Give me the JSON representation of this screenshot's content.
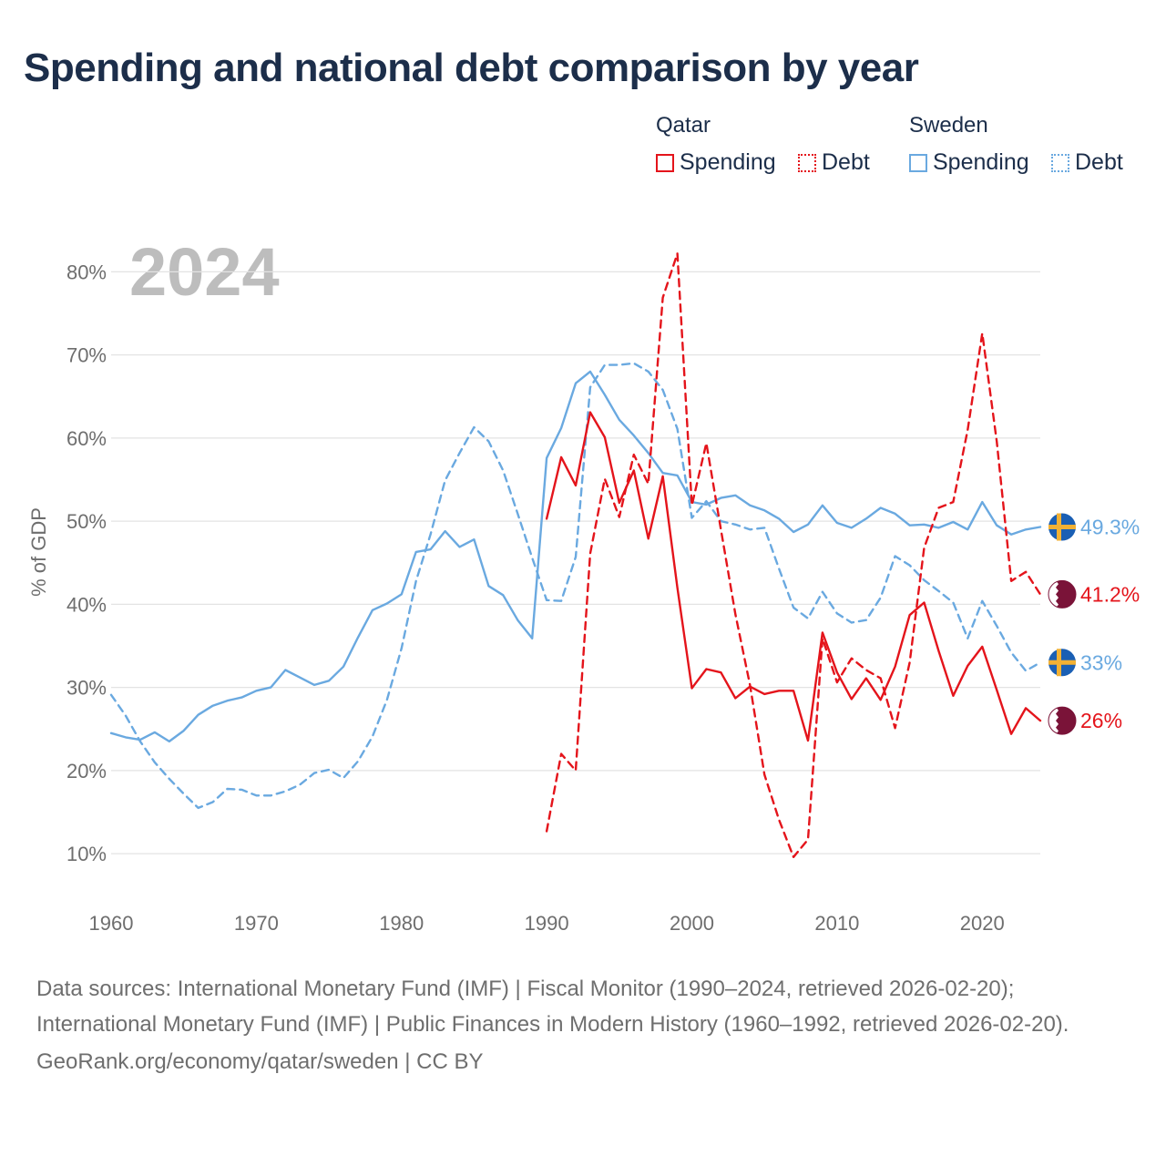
{
  "title": "Spending and national debt comparison by year",
  "legend": {
    "groups": [
      {
        "name": "Qatar",
        "items": [
          {
            "label": "Spending",
            "style": "solid",
            "color": "#e4141b"
          },
          {
            "label": "Debt",
            "style": "dotted",
            "color": "#e4141b"
          }
        ]
      },
      {
        "name": "Sweden",
        "items": [
          {
            "label": "Spending",
            "style": "solid",
            "color": "#6aa9e0"
          },
          {
            "label": "Debt",
            "style": "dotted",
            "color": "#6aa9e0"
          }
        ]
      }
    ]
  },
  "year_watermark": "2024",
  "footer": {
    "sources": "Data sources: International Monetary Fund (IMF) | Fiscal Monitor (1990–2024, retrieved 2026-02-20); International Monetary Fund (IMF) | Public Finances in Modern History (1960–1992, retrieved 2026-02-20).",
    "credit": "GeoRank.org/economy/qatar/sweden | CC BY"
  },
  "colors": {
    "qatar": "#e4141b",
    "sweden": "#6aa9e0",
    "qatar_flag": "#7a1338",
    "sweden_flag": "#1a5fb4",
    "sweden_cross": "#f2b134",
    "grid": "#e3e3e3"
  },
  "chart_data": {
    "type": "line",
    "title": "Spending and national debt comparison by year",
    "xlabel": "",
    "ylabel": "% of GDP",
    "xlim": [
      1960,
      2024
    ],
    "ylim": [
      3,
      83
    ],
    "x_ticks": [
      1960,
      1970,
      1980,
      1990,
      2000,
      2010,
      2020
    ],
    "y_ticks": [
      10,
      20,
      30,
      40,
      50,
      60,
      70,
      80
    ],
    "y_tick_labels": [
      "10%",
      "20%",
      "30%",
      "40%",
      "50%",
      "60%",
      "70%",
      "80%"
    ],
    "series": [
      {
        "name": "Sweden Spending",
        "country": "Sweden",
        "metric": "Spending",
        "dash": "solid",
        "end_label": "49.3%",
        "x": [
          1960,
          1961,
          1962,
          1963,
          1964,
          1965,
          1966,
          1967,
          1968,
          1969,
          1970,
          1971,
          1972,
          1973,
          1974,
          1975,
          1976,
          1977,
          1978,
          1979,
          1980,
          1981,
          1982,
          1983,
          1984,
          1985,
          1986,
          1987,
          1988,
          1989,
          1990,
          1991,
          1992,
          1993,
          1994,
          1995,
          1996,
          1997,
          1998,
          1999,
          2000,
          2001,
          2002,
          2003,
          2004,
          2005,
          2006,
          2007,
          2008,
          2009,
          2010,
          2011,
          2012,
          2013,
          2014,
          2015,
          2016,
          2017,
          2018,
          2019,
          2020,
          2021,
          2022,
          2023,
          2024
        ],
        "y": [
          24.5,
          24.0,
          23.7,
          24.6,
          23.5,
          24.8,
          26.7,
          27.8,
          28.4,
          28.8,
          29.6,
          30.0,
          32.1,
          31.2,
          30.3,
          30.8,
          32.5,
          36.0,
          39.3,
          40.1,
          41.2,
          46.3,
          46.6,
          48.8,
          46.9,
          47.8,
          42.2,
          41.1,
          38.1,
          35.9,
          57.6,
          61.2,
          66.6,
          68.0,
          65.2,
          62.2,
          60.3,
          58.2,
          55.8,
          55.5,
          52.3,
          52.0,
          52.8,
          53.1,
          51.9,
          51.3,
          50.3,
          48.7,
          49.6,
          51.9,
          49.8,
          49.2,
          50.3,
          51.6,
          50.9,
          49.5,
          49.6,
          49.2,
          49.9,
          49.0,
          52.3,
          49.5,
          48.4,
          49.0,
          49.3
        ]
      },
      {
        "name": "Sweden Debt",
        "country": "Sweden",
        "metric": "Debt",
        "dash": "dashed",
        "end_label": "33%",
        "x": [
          1960,
          1961,
          1962,
          1963,
          1964,
          1965,
          1966,
          1967,
          1968,
          1969,
          1970,
          1971,
          1972,
          1973,
          1974,
          1975,
          1976,
          1977,
          1978,
          1979,
          1980,
          1981,
          1982,
          1983,
          1984,
          1985,
          1986,
          1987,
          1988,
          1989,
          1990,
          1991,
          1992,
          1993,
          1994,
          1995,
          1996,
          1997,
          1998,
          1999,
          2000,
          2001,
          2002,
          2003,
          2004,
          2005,
          2006,
          2007,
          2008,
          2009,
          2010,
          2011,
          2012,
          2013,
          2014,
          2015,
          2016,
          2017,
          2018,
          2019,
          2020,
          2021,
          2022,
          2023,
          2024
        ],
        "y": [
          29.1,
          26.6,
          23.5,
          21.0,
          19.0,
          17.2,
          15.5,
          16.2,
          17.8,
          17.7,
          17.0,
          17.0,
          17.5,
          18.3,
          19.7,
          20.1,
          19.1,
          21.1,
          24.1,
          28.5,
          34.7,
          42.8,
          48.4,
          54.9,
          58.2,
          61.3,
          59.6,
          56.1,
          50.9,
          45.6,
          40.5,
          40.4,
          45.7,
          66.1,
          68.8,
          68.8,
          69.0,
          68.0,
          65.8,
          61.1,
          50.4,
          52.4,
          50.0,
          49.6,
          49.0,
          49.2,
          44.3,
          39.6,
          38.3,
          41.5,
          38.9,
          37.8,
          38.1,
          40.8,
          45.8,
          44.7,
          42.9,
          41.6,
          40.2,
          35.9,
          40.4,
          37.4,
          34.2,
          32.0,
          33.0
        ]
      },
      {
        "name": "Qatar Spending",
        "country": "Qatar",
        "metric": "Spending",
        "dash": "solid",
        "end_label": "26%",
        "x": [
          1990,
          1991,
          1992,
          1993,
          1994,
          1995,
          1996,
          1997,
          1998,
          1999,
          2000,
          2001,
          2002,
          2003,
          2004,
          2005,
          2006,
          2007,
          2008,
          2009,
          2010,
          2011,
          2012,
          2013,
          2014,
          2015,
          2016,
          2017,
          2018,
          2019,
          2020,
          2021,
          2022,
          2023,
          2024
        ],
        "y": [
          50.3,
          57.7,
          54.3,
          63.1,
          60.1,
          52.2,
          56.1,
          47.9,
          55.4,
          42.0,
          29.9,
          32.2,
          31.8,
          28.7,
          30.1,
          29.2,
          29.6,
          29.6,
          23.6,
          36.6,
          31.8,
          28.6,
          31.1,
          28.5,
          32.5,
          38.7,
          40.2,
          34.4,
          29.0,
          32.6,
          34.9,
          29.7,
          24.4,
          27.5,
          26.0
        ]
      },
      {
        "name": "Qatar Debt",
        "country": "Qatar",
        "metric": "Debt",
        "dash": "dashed",
        "end_label": "41.2%",
        "x": [
          1990,
          1991,
          1992,
          1993,
          1994,
          1995,
          1996,
          1997,
          1998,
          1999,
          2000,
          2001,
          2002,
          2003,
          2004,
          2005,
          2006,
          2007,
          2008,
          2009,
          2010,
          2011,
          2012,
          2013,
          2014,
          2015,
          2016,
          2017,
          2018,
          2019,
          2020,
          2021,
          2022,
          2023,
          2024
        ],
        "y": [
          12.7,
          22.0,
          20.0,
          46.1,
          55.1,
          50.5,
          58.0,
          54.5,
          76.9,
          82.2,
          51.9,
          59.4,
          49.0,
          38.8,
          30.3,
          19.5,
          14.1,
          9.6,
          11.7,
          35.9,
          30.6,
          33.5,
          32.1,
          31.1,
          25.1,
          33.0,
          46.8,
          51.6,
          52.3,
          61.0,
          72.6,
          59.6,
          42.8,
          43.9,
          41.2
        ]
      }
    ]
  }
}
